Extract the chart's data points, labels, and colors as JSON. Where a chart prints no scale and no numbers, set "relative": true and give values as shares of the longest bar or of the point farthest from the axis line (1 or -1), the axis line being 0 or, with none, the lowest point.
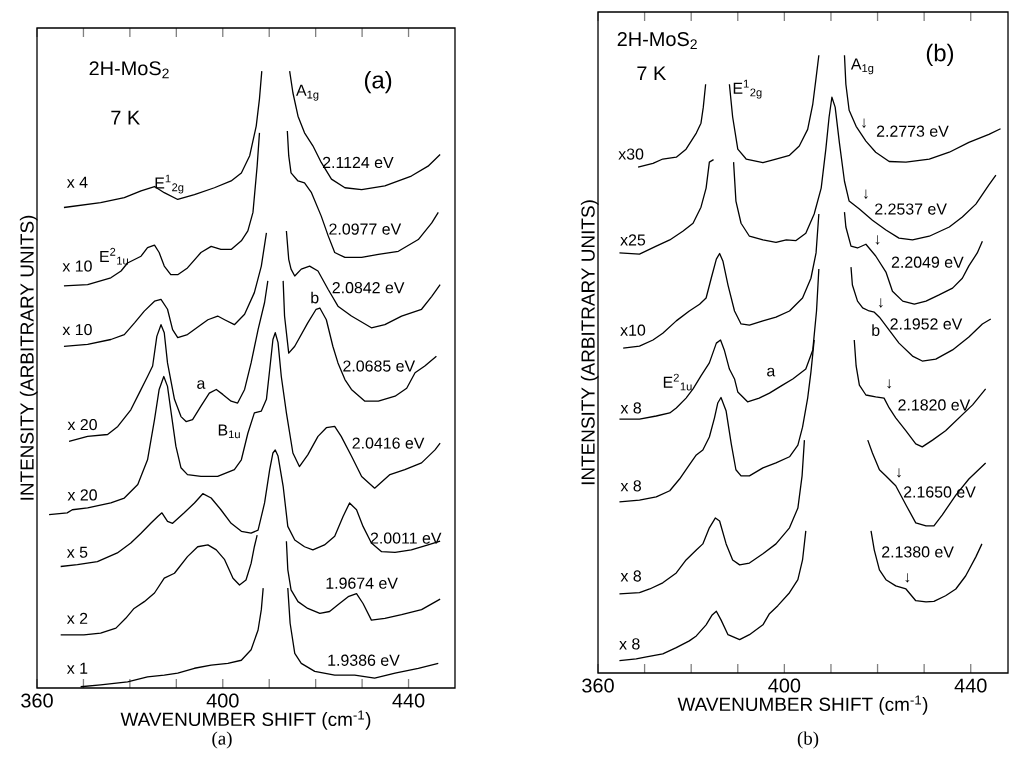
{
  "chart_data": [
    {
      "type": "line",
      "relative": true,
      "title": "2H-MoS$_{2}$",
      "subtitle": "7 K",
      "xlabel": "WAVENUMBER  SHIFT (cm$^{-1}$)",
      "ylabel": "INTENSITY (ARBITRARY UNITS)",
      "xlim": [
        360,
        450
      ],
      "xticks": [
        360,
        {
          "value": 370,
          "label": null
        },
        {
          "value": 380,
          "label": null
        },
        {
          "value": 390,
          "label": null
        },
        400,
        {
          "value": 410,
          "label": null
        },
        {
          "value": 420,
          "label": null
        },
        {
          "value": 430,
          "label": null
        },
        440
      ],
      "series": [
        {
          "color": "#000000",
          "x": [
            365.8,
            373.7,
            378.8,
            382.4,
            385.3,
            387.4,
            390.3,
            393.9,
            398.2,
            401.8,
            404.0,
            405.8,
            407.2,
            407.9,
            408.4,
            411.4,
            414.4,
            415.1,
            416.2,
            417.6,
            419.4,
            421.2,
            423.4,
            426.3,
            429.9,
            434.9,
            440.6,
            444.2,
            446.8
          ],
          "values": [
            0.779,
            0.787,
            0.795,
            0.806,
            0.813,
            0.803,
            0.792,
            0.8,
            0.811,
            0.822,
            0.835,
            0.863,
            0.911,
            0.955,
            1.0,
            null,
            1.0,
            0.965,
            0.927,
            0.9,
            0.879,
            0.852,
            0.825,
            0.811,
            0.808,
            0.814,
            0.83,
            0.846,
            0.865
          ]
        },
        {
          "color": "#000000",
          "x": [
            365.8,
            370.9,
            375.9,
            378.1,
            379.5,
            382.4,
            383.8,
            385.3,
            386.3,
            387.4,
            388.8,
            390.3,
            392.4,
            395.3,
            397.5,
            399.6,
            401.8,
            404.0,
            405.4,
            406.5,
            407.4,
            407.9,
            411.0,
            413.9,
            414.2,
            414.7,
            416.2,
            417.6,
            419.1,
            421.2,
            422.7,
            424.1,
            426.3,
            429.9,
            433.5,
            437.8,
            442.1,
            445.0,
            446.4
          ],
          "values": [
            0.652,
            0.654,
            0.665,
            0.676,
            0.689,
            0.7,
            0.714,
            0.718,
            0.706,
            0.684,
            0.67,
            0.67,
            0.681,
            0.706,
            0.716,
            0.711,
            0.711,
            0.725,
            0.741,
            0.771,
            0.846,
            0.9,
            null,
            0.903,
            0.863,
            0.835,
            0.822,
            0.819,
            0.803,
            0.765,
            0.733,
            0.706,
            0.698,
            0.698,
            0.703,
            0.708,
            0.727,
            0.754,
            0.771
          ]
        },
        {
          "color": "#000000",
          "x": [
            365.8,
            370.9,
            375.9,
            378.8,
            381.0,
            383.1,
            385.3,
            386.7,
            388.1,
            389.2,
            390.3,
            392.4,
            395.3,
            396.8,
            398.9,
            400.4,
            402.5,
            404.7,
            406.8,
            408.3,
            409.4,
            411.5,
            413.7,
            414.2,
            414.7,
            415.5,
            416.9,
            418.7,
            420.5,
            422.7,
            424.8,
            427.7,
            432.0,
            434.9,
            438.5,
            442.8,
            445.0,
            446.8
          ],
          "values": [
            0.554,
            0.557,
            0.565,
            0.573,
            0.592,
            0.611,
            0.627,
            0.63,
            0.614,
            0.581,
            0.568,
            0.573,
            0.589,
            0.597,
            0.603,
            0.597,
            0.589,
            0.606,
            0.641,
            0.684,
            0.738,
            null,
            0.741,
            0.695,
            0.679,
            0.668,
            0.679,
            0.684,
            0.676,
            0.646,
            0.619,
            0.603,
            0.584,
            0.589,
            0.603,
            0.614,
            0.635,
            0.654
          ]
        },
        {
          "color": "#000000",
          "x": [
            366.9,
            370.9,
            375.2,
            377.4,
            380.2,
            382.0,
            383.8,
            384.9,
            385.8,
            386.7,
            387.4,
            388.1,
            389.6,
            391.0,
            392.1,
            393.5,
            395.3,
            397.1,
            398.6,
            400.0,
            401.8,
            403.2,
            404.7,
            406.1,
            407.6,
            409.0,
            409.7,
            411.3,
            413.0,
            413.3,
            414.2,
            415.5,
            418.3,
            420.1,
            420.9,
            422.3,
            423.7,
            424.8,
            426.3,
            427.7,
            430.6,
            433.5,
            437.1,
            439.6,
            441.4,
            443.5,
            446.0
          ],
          "values": [
            0.4,
            0.408,
            0.411,
            0.424,
            0.451,
            0.478,
            0.505,
            0.522,
            0.57,
            0.589,
            0.576,
            0.527,
            0.468,
            0.44,
            0.432,
            0.435,
            0.457,
            0.478,
            0.484,
            0.476,
            0.465,
            0.462,
            0.484,
            0.527,
            0.581,
            0.625,
            0.66,
            null,
            0.66,
            0.603,
            0.543,
            0.554,
            0.592,
            0.614,
            0.616,
            0.597,
            0.554,
            0.527,
            0.5,
            0.484,
            0.465,
            0.465,
            0.473,
            0.486,
            0.511,
            0.522,
            0.538
          ]
        },
        {
          "color": "#000000",
          "x": [
            362.6,
            366.5,
            367.6,
            370.9,
            375.9,
            378.8,
            381.7,
            383.8,
            385.3,
            386.3,
            387.3,
            388.1,
            388.8,
            389.9,
            391.0,
            392.4,
            395.3,
            398.9,
            402.5,
            404.0,
            405.4,
            406.8,
            408.3,
            409.4,
            410.1,
            410.8,
            411.3,
            411.9,
            412.6,
            413.7,
            415.1,
            416.5,
            418.3,
            420.5,
            422.3,
            424.1,
            425.5,
            427.7,
            429.9,
            432.7,
            436.0,
            439.2,
            442.8,
            445.7,
            446.8
          ],
          "values": [
            0.281,
            0.284,
            0.289,
            0.292,
            0.3,
            0.308,
            0.33,
            0.37,
            0.435,
            0.484,
            0.505,
            0.489,
            0.451,
            0.392,
            0.357,
            0.346,
            0.343,
            0.343,
            0.354,
            0.37,
            0.413,
            0.446,
            0.449,
            0.468,
            0.516,
            0.565,
            0.576,
            0.56,
            0.505,
            0.446,
            0.381,
            0.359,
            0.378,
            0.408,
            0.422,
            0.424,
            0.408,
            0.376,
            0.343,
            0.324,
            0.346,
            0.354,
            0.365,
            0.386,
            0.397
          ]
        },
        {
          "color": "#000000",
          "x": [
            365.1,
            368.7,
            373.0,
            377.3,
            380.2,
            382.4,
            384.5,
            386.0,
            386.9,
            388.1,
            389.2,
            391.7,
            393.9,
            395.7,
            397.5,
            399.6,
            401.8,
            404.0,
            406.1,
            407.6,
            409.0,
            410.1,
            410.8,
            411.3,
            411.9,
            413.0,
            414.0,
            415.5,
            417.6,
            419.4,
            421.9,
            424.1,
            425.9,
            427.3,
            428.8,
            430.2,
            432.0,
            434.2,
            437.1,
            440.6,
            444.2,
            446.8
          ],
          "values": [
            0.197,
            0.2,
            0.205,
            0.219,
            0.235,
            0.251,
            0.267,
            0.278,
            0.284,
            0.27,
            0.267,
            0.284,
            0.3,
            0.315,
            0.308,
            0.289,
            0.267,
            0.254,
            0.251,
            0.256,
            0.3,
            0.354,
            0.381,
            0.386,
            0.376,
            0.327,
            0.262,
            0.24,
            0.229,
            0.224,
            0.232,
            0.246,
            0.278,
            0.3,
            0.289,
            0.262,
            0.235,
            0.221,
            0.22,
            0.224,
            0.232,
            0.238
          ]
        },
        {
          "color": "#000000",
          "x": [
            365.1,
            370.1,
            373.7,
            377.0,
            379.1,
            380.9,
            383.1,
            385.3,
            387.4,
            389.6,
            392.4,
            394.6,
            396.8,
            398.6,
            400.4,
            402.2,
            403.6,
            405.0,
            406.1,
            406.8,
            407.4,
            410.5,
            413.7,
            414.0,
            414.7,
            416.2,
            418.3,
            420.9,
            423.0,
            424.8,
            427.0,
            428.8,
            430.2,
            432.0,
            434.9,
            438.5,
            442.8,
            446.8
          ],
          "values": [
            0.086,
            0.086,
            0.089,
            0.097,
            0.113,
            0.129,
            0.14,
            0.154,
            0.178,
            0.186,
            0.213,
            0.229,
            0.232,
            0.224,
            0.208,
            0.178,
            0.167,
            0.175,
            0.202,
            0.229,
            0.248,
            null,
            0.238,
            0.192,
            0.159,
            0.14,
            0.129,
            0.121,
            0.124,
            0.135,
            0.148,
            0.153,
            0.137,
            0.11,
            0.113,
            0.119,
            0.127,
            0.144
          ]
        },
        {
          "color": "#000000",
          "x": [
            369.4,
            373.7,
            379.5,
            383.8,
            387.4,
            390.3,
            393.9,
            397.5,
            401.1,
            404.0,
            406.1,
            407.6,
            408.3,
            408.7,
            411.3,
            414.0,
            414.5,
            415.5,
            416.9,
            419.8,
            424.1,
            428.4,
            432.7,
            437.1,
            442.1,
            446.4
          ],
          "values": [
            0.002,
            0.005,
            0.01,
            0.018,
            0.021,
            0.024,
            0.032,
            0.037,
            0.04,
            0.045,
            0.062,
            0.094,
            0.127,
            0.162,
            null,
            0.162,
            0.105,
            0.056,
            0.04,
            0.027,
            0.021,
            0.021,
            0.016,
            0.024,
            0.032,
            0.04
          ]
        }
      ],
      "annotations": [
        "x 4",
        "x 10",
        "x 10",
        "x 20",
        "x 20",
        "x 5",
        "x 2",
        "x 1",
        "E$^{1}$$_{2g}$",
        "E$^{2}$$_{1u}$",
        "A$_{1g}$",
        "b",
        "a",
        "B$_{1u}$",
        "2.1124 eV",
        "2.0977 eV",
        "2.0842 eV",
        "2.0685 eV",
        "2.0416 eV",
        "2.0011 eV",
        "1.9674 eV",
        "1.9386 eV",
        "(a)",
        "(a)"
      ]
    },
    {
      "type": "line",
      "relative": true,
      "title": "2H-MoS$_{2}$",
      "subtitle": "7 K",
      "xlabel": "WAVENUMBER  SHIFT (cm$^{-1}$)",
      "ylabel": "INTENSITY (ARBITRARY UNITS)",
      "xlim": [
        360,
        448
      ],
      "xticks": [
        360,
        {
          "value": 370,
          "label": null
        },
        {
          "value": 380,
          "label": null
        },
        {
          "value": 390,
          "label": null
        },
        400,
        {
          "value": 410,
          "label": null
        },
        {
          "value": 420,
          "label": null
        },
        {
          "value": 430,
          "label": null
        },
        440
      ],
      "series": [
        {
          "color": "#000000",
          "x": [
            368.6,
            371.8,
            373.9,
            376.8,
            378.9,
            381.1,
            382.1,
            382.6,
            383.1,
            385.6,
            388.2,
            388.9,
            390.0,
            391.8,
            395.4,
            398.2,
            401.1,
            403.2,
            405.0,
            406.1,
            406.8,
            407.4,
            410.1,
            412.9,
            413.2,
            413.9,
            415.4,
            417.5,
            419.6,
            422.5,
            426.1,
            431.1,
            435.4,
            439.6,
            443.9,
            446.4
          ],
          "values": [
            0.819,
            0.825,
            0.832,
            0.835,
            0.848,
            0.874,
            0.89,
            0.916,
            0.953,
            null,
            0.953,
            0.9,
            0.848,
            0.832,
            0.826,
            0.832,
            0.838,
            0.853,
            0.88,
            0.921,
            0.963,
            1.0,
            null,
            1.0,
            0.953,
            0.911,
            0.885,
            0.861,
            0.843,
            0.828,
            0.827,
            0.832,
            0.843,
            0.859,
            0.872,
            0.881
          ]
        },
        {
          "color": "#000000",
          "x": [
            364.6,
            368.9,
            372.5,
            375.4,
            378.2,
            380.4,
            382.1,
            383.2,
            383.9,
            384.8,
            387.0,
            389.1,
            389.6,
            390.7,
            392.5,
            395.4,
            398.2,
            400.4,
            402.5,
            404.6,
            406.4,
            407.9,
            408.9,
            409.6,
            410.2,
            410.9,
            411.8,
            412.9,
            413.9,
            416.1,
            418.9,
            421.8,
            424.6,
            427.5,
            431.1,
            435.4,
            438.2,
            441.1,
            443.9,
            445.4
          ],
          "values": [
            0.68,
            0.678,
            0.691,
            0.701,
            0.715,
            0.728,
            0.754,
            0.785,
            0.827,
            0.831,
            null,
            0.827,
            0.764,
            0.728,
            0.707,
            0.701,
            0.697,
            0.701,
            0.7,
            0.712,
            0.743,
            0.785,
            0.848,
            0.9,
            0.932,
            0.916,
            0.859,
            0.796,
            0.764,
            0.751,
            0.733,
            0.717,
            0.704,
            0.701,
            0.707,
            0.722,
            0.738,
            0.759,
            0.79,
            0.806
          ]
        },
        {
          "color": "#000000",
          "x": [
            365.4,
            368.9,
            371.8,
            373.9,
            376.8,
            379.6,
            381.8,
            383.2,
            384.3,
            385.4,
            386.1,
            386.8,
            387.9,
            389.3,
            390.7,
            392.5,
            395.4,
            398.2,
            401.1,
            403.9,
            405.7,
            406.8,
            407.4,
            410.1,
            412.9,
            413.2,
            414.3,
            415.7,
            417.5,
            419.6,
            421.8,
            423.2,
            425.4,
            427.9,
            430.4,
            433.2,
            436.1,
            438.2,
            439.6,
            441.4,
            442.5
          ],
          "values": [
            0.526,
            0.529,
            0.539,
            0.55,
            0.57,
            0.586,
            0.597,
            0.607,
            0.639,
            0.67,
            0.679,
            0.667,
            0.628,
            0.586,
            0.565,
            0.563,
            0.57,
            0.576,
            0.586,
            0.607,
            0.639,
            0.68,
            0.743,
            null,
            0.746,
            0.722,
            0.691,
            0.688,
            0.694,
            0.675,
            0.649,
            0.618,
            0.602,
            0.597,
            0.602,
            0.612,
            0.623,
            0.639,
            0.659,
            0.68,
            0.699
          ]
        },
        {
          "color": "#000000",
          "x": [
            364.6,
            368.9,
            372.5,
            375.4,
            376.8,
            378.9,
            380.4,
            382.1,
            383.9,
            385.4,
            386.3,
            387.1,
            388.2,
            389.3,
            390.0,
            392.1,
            394.6,
            396.8,
            399.6,
            401.8,
            404.6,
            406.1,
            406.9,
            407.4,
            410.8,
            414.3,
            414.6,
            415.7,
            416.8,
            418.2,
            419.3,
            420.4,
            422.5,
            424.6,
            427.5,
            429.6,
            432.5,
            436.1,
            439.6,
            442.5,
            444.3
          ],
          "values": [
            0.411,
            0.411,
            0.416,
            0.421,
            0.429,
            0.445,
            0.46,
            0.481,
            0.502,
            0.534,
            0.539,
            0.523,
            0.492,
            0.476,
            0.455,
            0.439,
            0.445,
            0.453,
            0.466,
            0.476,
            0.492,
            0.523,
            0.586,
            0.654,
            null,
            0.657,
            0.628,
            0.602,
            0.591,
            0.586,
            0.584,
            0.576,
            0.555,
            0.534,
            0.513,
            0.505,
            0.508,
            0.523,
            0.544,
            0.565,
            0.573
          ]
        },
        {
          "color": "#000000",
          "x": [
            364.6,
            368.9,
            372.5,
            375.4,
            377.5,
            379.6,
            381.1,
            382.5,
            383.9,
            385.0,
            385.7,
            386.4,
            387.5,
            388.6,
            389.6,
            390.7,
            392.5,
            395.4,
            398.2,
            401.1,
            402.9,
            403.9,
            405.0,
            405.7,
            406.4,
            410.7,
            415.0,
            415.4,
            416.1,
            417.5,
            419.6,
            421.4,
            422.5,
            423.9,
            426.1,
            428.2,
            429.6,
            431.8,
            434.6,
            437.5,
            440.4,
            443.2
          ],
          "values": [
            0.277,
            0.28,
            0.285,
            0.295,
            0.314,
            0.337,
            0.353,
            0.361,
            0.382,
            0.413,
            0.437,
            0.446,
            0.424,
            0.371,
            0.329,
            0.319,
            0.319,
            0.332,
            0.34,
            0.35,
            0.369,
            0.398,
            0.445,
            0.487,
            0.539,
            null,
            0.539,
            0.497,
            0.466,
            0.45,
            0.447,
            0.445,
            0.429,
            0.413,
            0.392,
            0.371,
            0.366,
            0.377,
            0.392,
            0.413,
            0.434,
            0.46
          ]
        },
        {
          "color": "#000000",
          "x": [
            364.6,
            368.9,
            371.1,
            373.9,
            376.8,
            378.9,
            381.1,
            382.5,
            383.9,
            385.2,
            386.1,
            387.5,
            388.9,
            390.4,
            392.5,
            395.4,
            398.2,
            401.1,
            402.9,
            403.8,
            404.3,
            411.1,
            417.9,
            418.9,
            420.4,
            421.8,
            423.9,
            426.1,
            428.2,
            430.4,
            432.1,
            433.9,
            436.8,
            439.6,
            443.2
          ],
          "values": [
            0.128,
            0.13,
            0.136,
            0.146,
            0.162,
            0.183,
            0.199,
            0.209,
            0.235,
            0.251,
            0.246,
            0.209,
            0.183,
            0.175,
            0.178,
            0.193,
            0.209,
            0.235,
            0.267,
            0.319,
            0.377,
            null,
            0.377,
            0.356,
            0.329,
            0.319,
            0.303,
            0.272,
            0.243,
            0.238,
            0.238,
            0.256,
            0.288,
            0.314,
            0.34
          ]
        },
        {
          "color": "#000000",
          "x": [
            364.6,
            368.2,
            370.4,
            373.9,
            376.8,
            379.6,
            381.1,
            383.2,
            384.5,
            385.4,
            386.4,
            387.9,
            390.4,
            392.5,
            395.4,
            396.8,
            398.6,
            401.1,
            402.9,
            403.9,
            404.6,
            411.6,
            418.6,
            419.3,
            420.4,
            421.8,
            423.9,
            426.1,
            428.2,
            430.4,
            432.1,
            434.6,
            436.8,
            438.9,
            441.1,
            442.4
          ],
          "values": [
            0.02,
            0.023,
            0.026,
            0.031,
            0.041,
            0.052,
            0.06,
            0.078,
            0.094,
            0.1,
            0.086,
            0.062,
            0.054,
            0.062,
            0.078,
            0.096,
            0.109,
            0.13,
            0.151,
            0.183,
            0.23,
            null,
            0.23,
            0.199,
            0.167,
            0.151,
            0.141,
            0.136,
            0.117,
            0.115,
            0.116,
            0.125,
            0.136,
            0.157,
            0.188,
            0.209
          ]
        }
      ],
      "annotations": [
        "x30",
        "x25",
        "x10",
        "x 8",
        "x 8",
        "x 8",
        "x 8",
        "E$^{1}$$_{2g}$",
        "A$_{1g}$",
        "E$^{2}$$_{1u}$",
        "a",
        "b",
        "2.2773 eV",
        "2.2537 eV",
        "2.2049 eV",
        "2.1952 eV",
        "2.1820 eV",
        "2.1650 eV",
        "2.1380 eV",
        "↓",
        "↓",
        "↓",
        "↓",
        "↓",
        "↓",
        "↓",
        "(b)",
        "(b)"
      ]
    }
  ]
}
